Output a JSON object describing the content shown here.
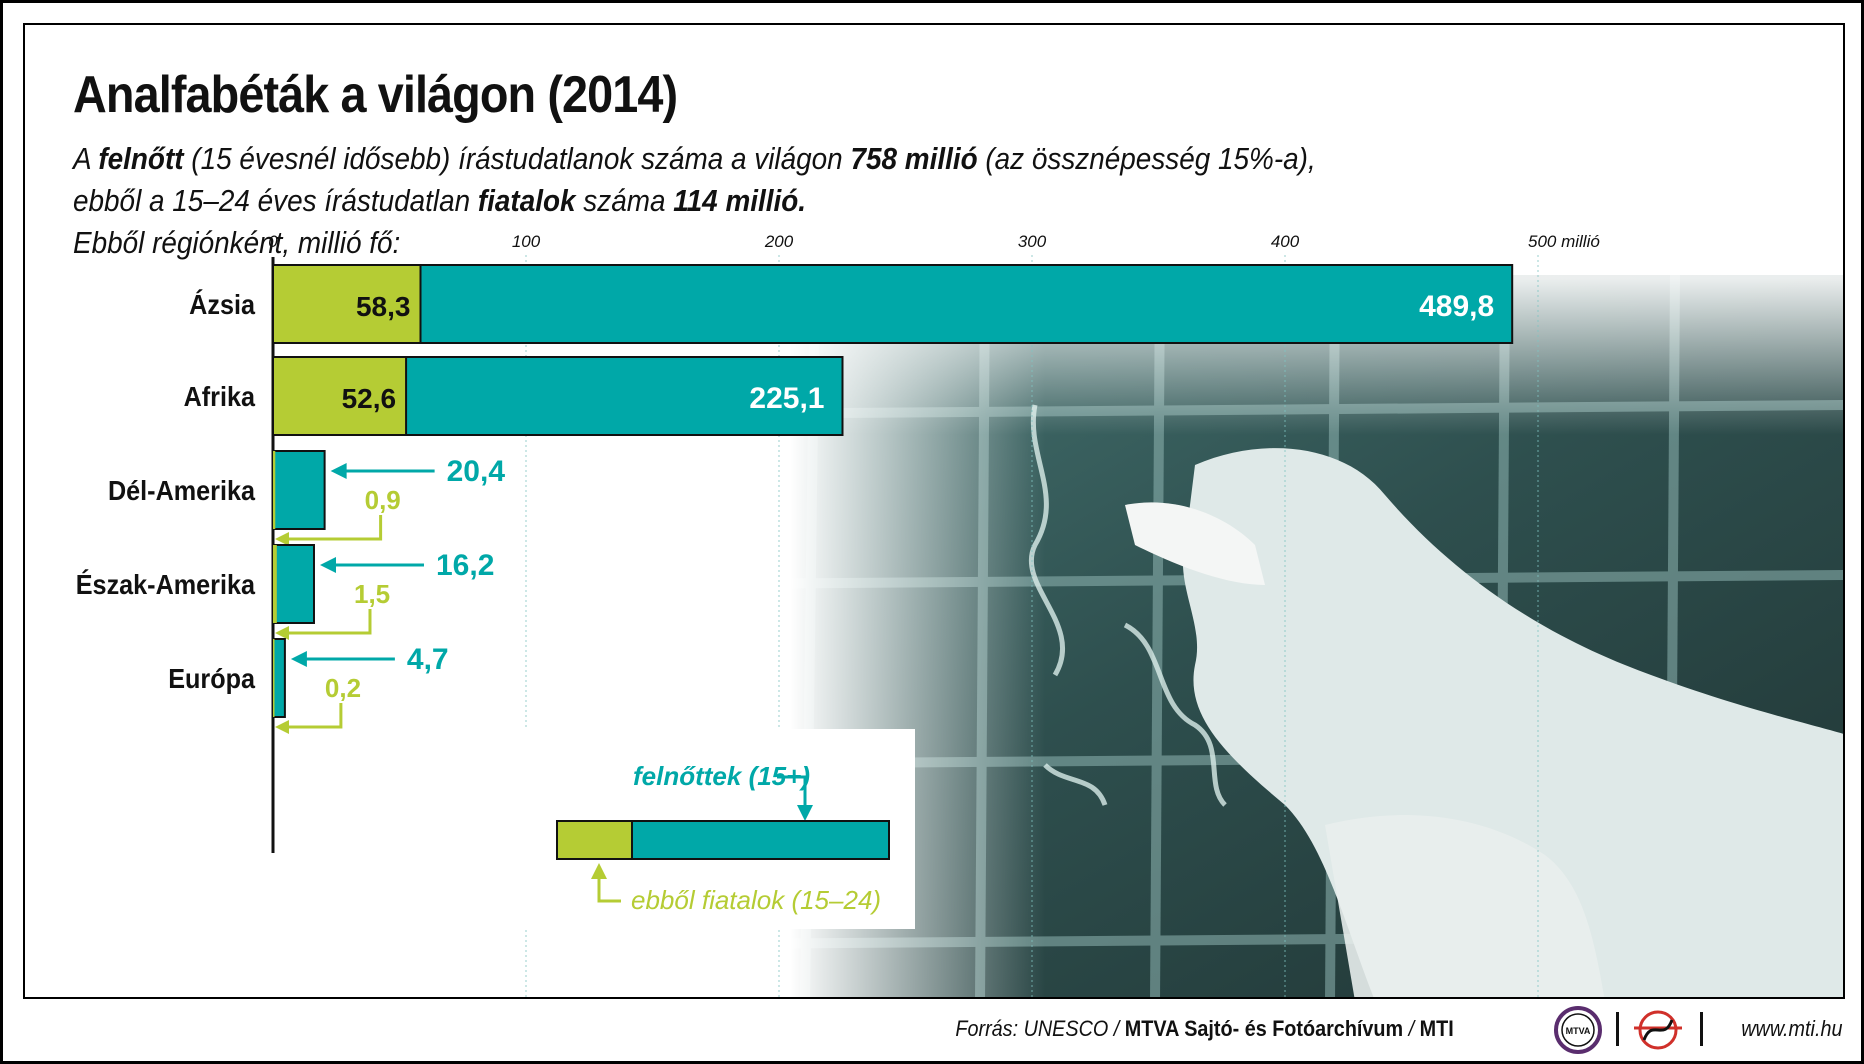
{
  "header": {
    "title": "Analfabéták a világon (2014)",
    "line1_a": "A ",
    "line1_b": "felnőtt",
    "line1_c": " (15 évesnél idősebb) írástudatlanok száma a világon ",
    "line1_d": "758 millió",
    "line1_e": " (az össznépesség 15%-a),",
    "line2_a": "ebből a 15–24 éves írástudatlan ",
    "line2_b": "fiatalok",
    "line2_c": " száma ",
    "line2_d": "114 millió.",
    "line3": "Ebből régiónként, millió fő:"
  },
  "chart_data": {
    "type": "bar",
    "orientation": "horizontal",
    "stacked": "overlay",
    "title": "Analfabéták a világon (2014)",
    "unit": "millió",
    "xlim": [
      0,
      500
    ],
    "ticks": [
      0,
      100,
      200,
      300,
      400,
      500
    ],
    "tick_labels": [
      "0",
      "100",
      "200",
      "300",
      "400",
      "500 millió"
    ],
    "categories": [
      "Ázsia",
      "Afrika",
      "Dél-Amerika",
      "Észak-Amerika",
      "Európa"
    ],
    "series": [
      {
        "name": "felnőttek (15+)",
        "color": "#00a8a8",
        "values": [
          489.8,
          225.1,
          20.4,
          16.2,
          4.7
        ],
        "labels": [
          "489,8",
          "225,1",
          "20,4",
          "16,2",
          "4,7"
        ]
      },
      {
        "name": "ebből fiatalok (15–24)",
        "color": "#b5cc34",
        "values": [
          58.3,
          52.6,
          0.9,
          1.5,
          0.2
        ],
        "labels": [
          "58,3",
          "52,6",
          "0,9",
          "1,5",
          "0,2"
        ]
      }
    ]
  },
  "legend": {
    "adults": "felnőttek (15+)",
    "youth": "ebből fiatalok (15–24)"
  },
  "footer": {
    "source_prefix": "Forrás: UNESCO / ",
    "source_archive": "MTVA Sajtó- és Fotóarchívum",
    "source_sep": " / ",
    "source_mti": "MTI",
    "logo_mtva": "MTVA",
    "website": "www.mti.hu"
  },
  "colors": {
    "teal": "#00a8a8",
    "lime": "#b5cc34",
    "text": "#111111"
  }
}
